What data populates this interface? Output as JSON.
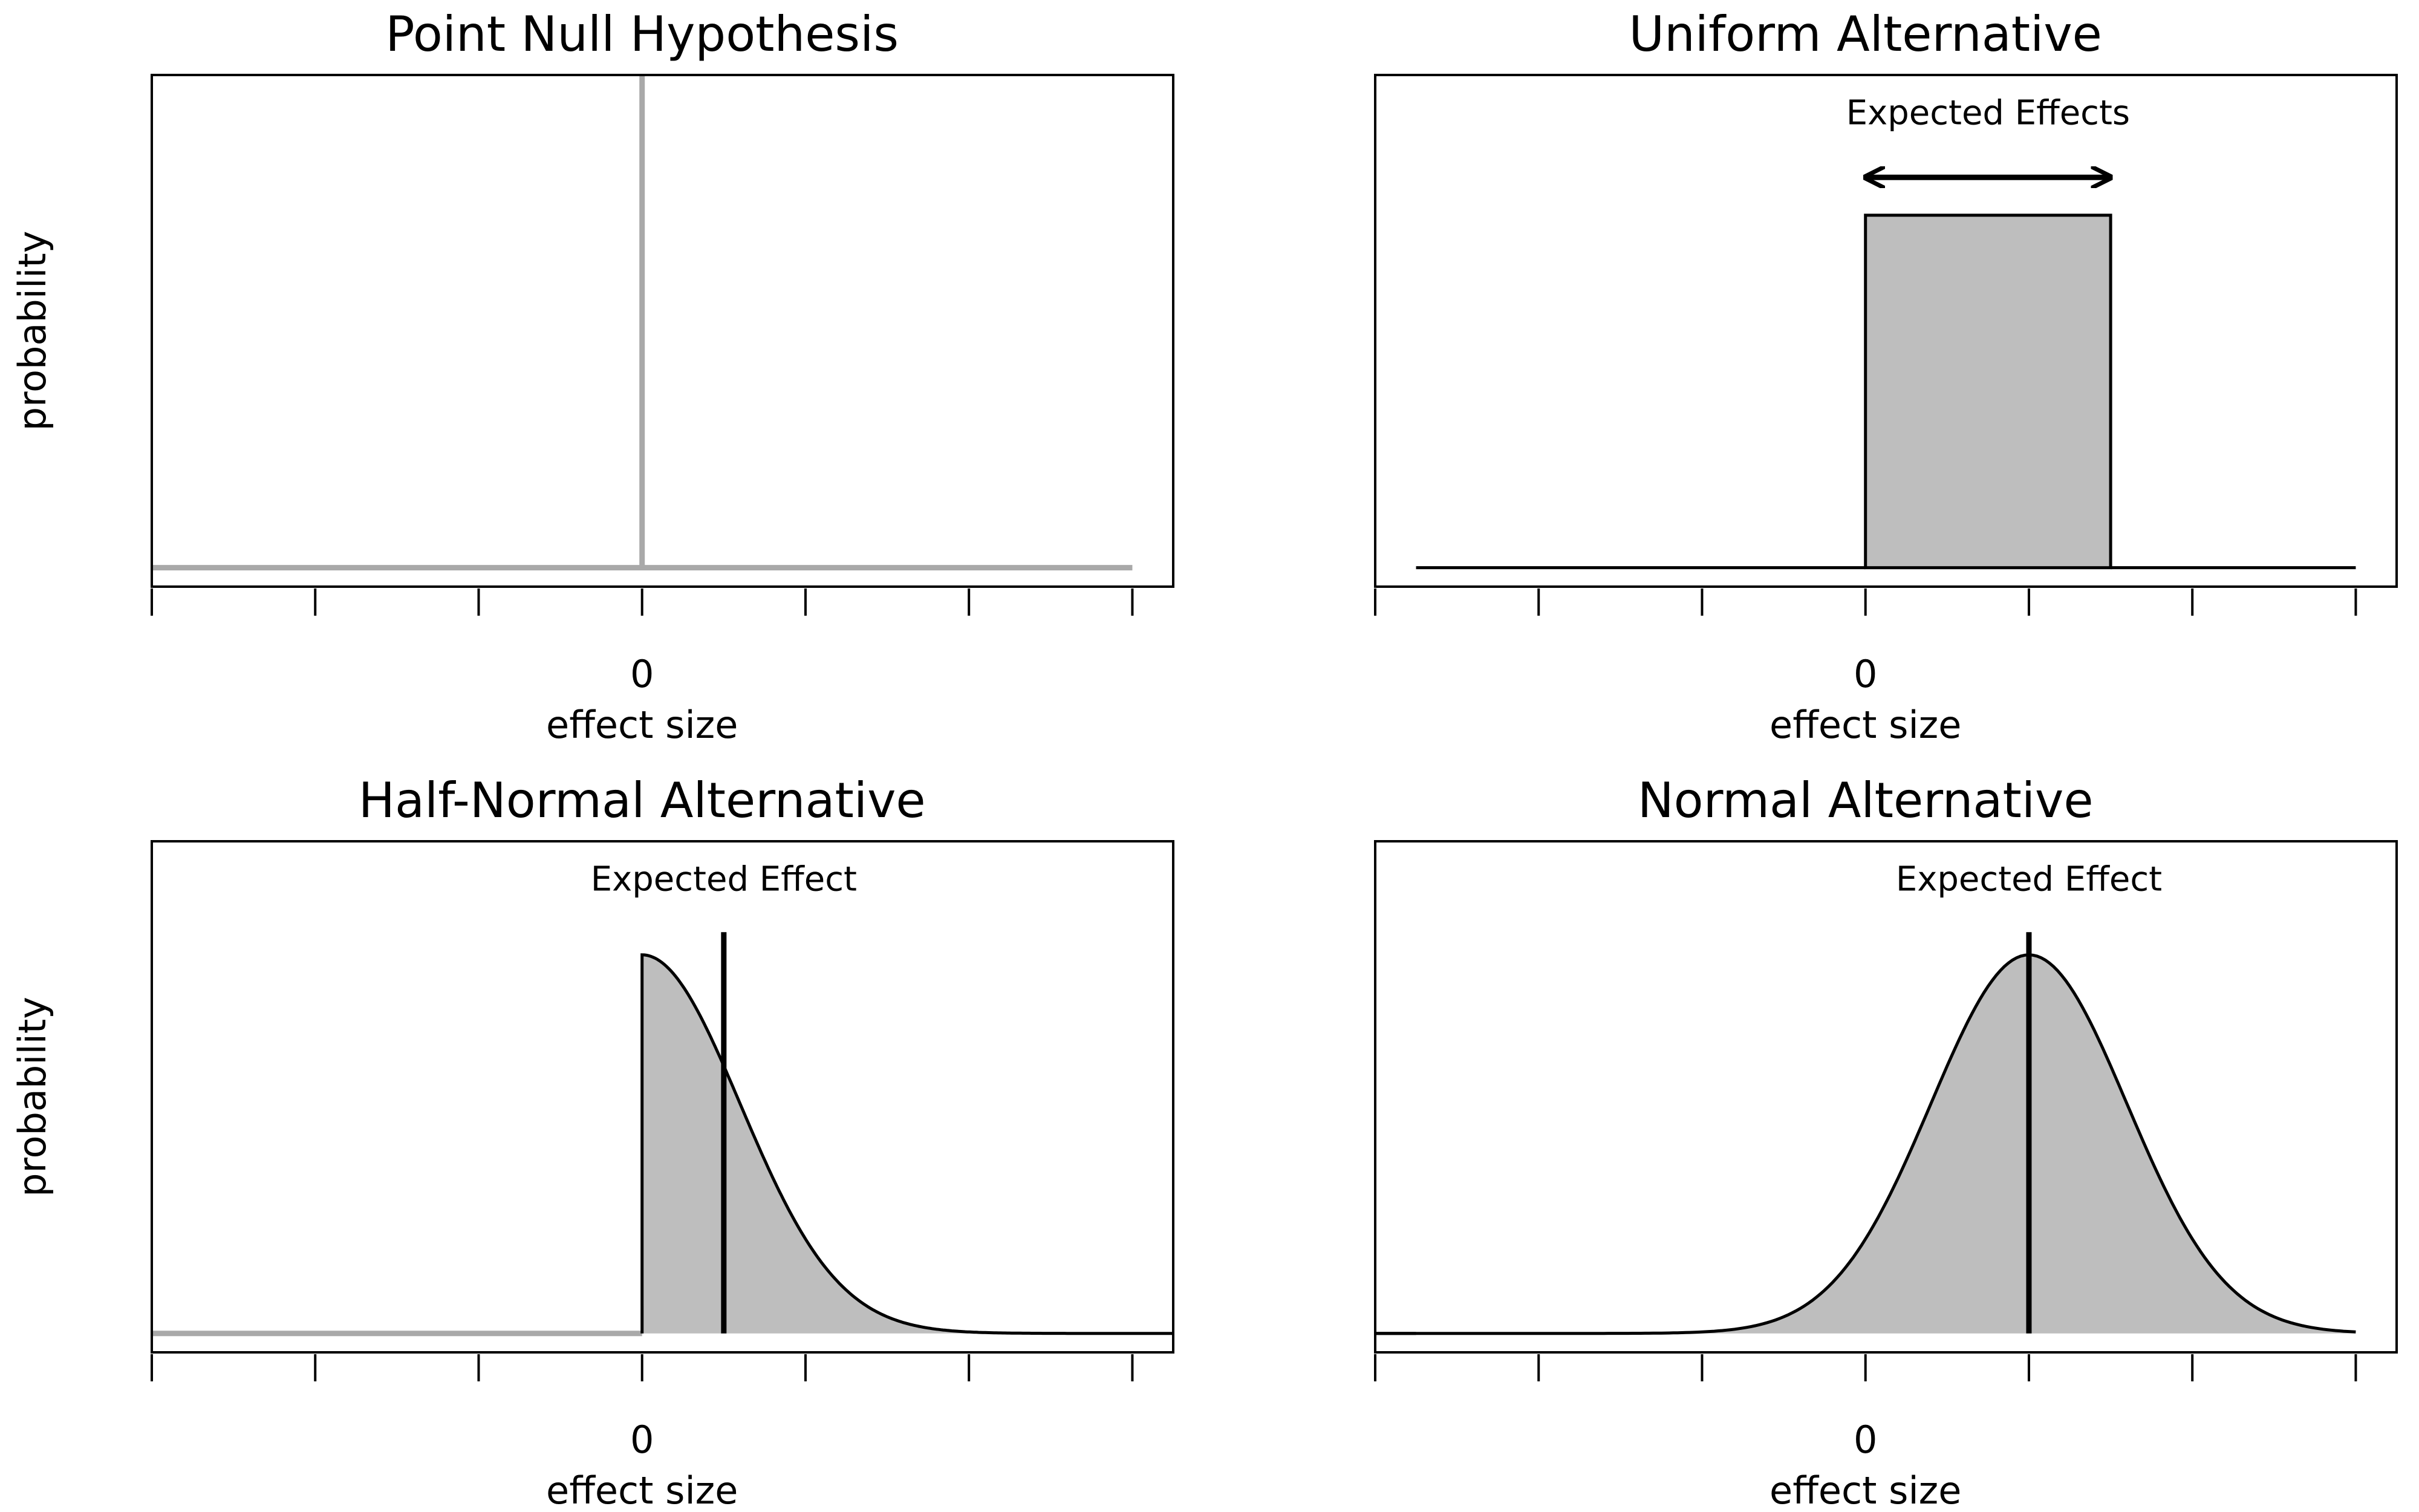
{
  "chart_data": [
    {
      "type": "area",
      "title": "Point Null Hypothesis",
      "xlabel": "effect size",
      "ylabel": "probability",
      "xlim": [
        -3,
        3.25
      ],
      "ylim": [
        -0.05,
        1.3
      ],
      "x_ticks": [
        -3,
        -2,
        -1,
        0,
        1,
        2,
        3
      ],
      "x_tick_labels": [
        "0"
      ],
      "x_tick_label_values": [
        0
      ],
      "grid": false,
      "series": [
        {
          "kind": "baseline",
          "x": [
            -3,
            3
          ],
          "y": [
            0,
            0
          ],
          "color": "#a9a9a9"
        },
        {
          "kind": "spike",
          "x": 0,
          "y": 1.3,
          "color": "#a9a9a9"
        }
      ]
    },
    {
      "type": "area",
      "title": "Uniform Alternative",
      "xlabel": "effect size",
      "ylabel": "",
      "xlim": [
        -3,
        3.25
      ],
      "ylim": [
        -0.05,
        1.3
      ],
      "x_ticks": [
        -3,
        -2,
        -1,
        0,
        1,
        2,
        3
      ],
      "x_tick_labels": [
        "0"
      ],
      "x_tick_label_values": [
        0
      ],
      "grid": false,
      "series": [
        {
          "kind": "uniform",
          "x_min": 0,
          "x_max": 1.5,
          "height": 0.93,
          "fill": "#bebebe",
          "color": "#000000"
        }
      ],
      "annotations": [
        {
          "text": "Expected Effects",
          "x": 0.75,
          "y": 1.17,
          "arrow_from": 0,
          "arrow_to": 1.5,
          "arrow_y": 1.03
        }
      ]
    },
    {
      "type": "area",
      "title": "Half-Normal Alternative",
      "xlabel": "effect size",
      "ylabel": "probability",
      "xlim": [
        -3,
        3.25
      ],
      "ylim": [
        -0.05,
        1.3
      ],
      "x_ticks": [
        -3,
        -2,
        -1,
        0,
        1,
        2,
        3
      ],
      "x_tick_labels": [
        "0"
      ],
      "x_tick_label_values": [
        0
      ],
      "grid": false,
      "series": [
        {
          "kind": "baseline",
          "x": [
            -3,
            0
          ],
          "y": [
            0,
            0
          ],
          "color": "#a9a9a9"
        },
        {
          "kind": "half-normal",
          "x_min": 0,
          "x_max": 3.25,
          "sigma": 0.6,
          "height": 1.0,
          "fill": "#bebebe",
          "color": "#000000"
        },
        {
          "kind": "marker-line",
          "x": 0.5,
          "y_top": 1.06,
          "color": "#000000"
        }
      ],
      "annotations": [
        {
          "text": "Expected Effect",
          "x": 0.5,
          "y": 1.17
        }
      ]
    },
    {
      "type": "area",
      "title": "Normal Alternative",
      "xlabel": "effect size",
      "ylabel": "",
      "xlim": [
        -3,
        3.25
      ],
      "ylim": [
        -0.05,
        1.3
      ],
      "x_ticks": [
        -3,
        -2,
        -1,
        0,
        1,
        2,
        3
      ],
      "x_tick_labels": [
        "0"
      ],
      "x_tick_label_values": [
        0
      ],
      "grid": false,
      "series": [
        {
          "kind": "normal",
          "x_min": -3,
          "x_max": 3,
          "mean": 1,
          "sigma": 0.6,
          "height": 1.0,
          "fill": "#bebebe",
          "color": "#000000"
        },
        {
          "kind": "marker-line",
          "x": 1,
          "y_top": 1.06,
          "color": "#000000"
        }
      ],
      "annotations": [
        {
          "text": "Expected Effect",
          "x": 1,
          "y": 1.17
        }
      ]
    }
  ]
}
